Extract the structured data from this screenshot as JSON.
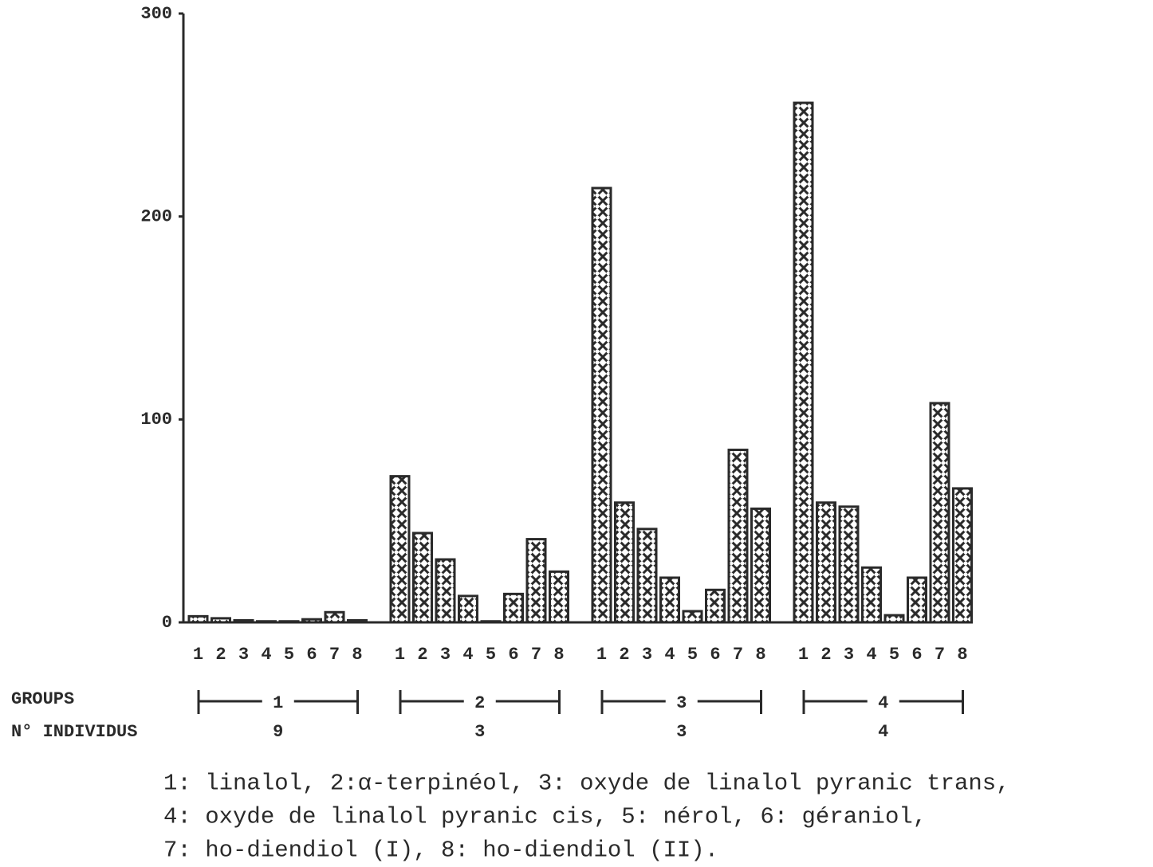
{
  "chart_data": {
    "type": "grouped_bar",
    "compounds": [
      "1",
      "2",
      "3",
      "4",
      "5",
      "6",
      "7",
      "8"
    ],
    "groups": [
      {
        "label": "1",
        "individuals": "9",
        "values": [
          3,
          2,
          1,
          0.5,
          0.5,
          1.5,
          5,
          1
        ]
      },
      {
        "label": "2",
        "individuals": "3",
        "values": [
          72,
          44,
          31,
          13,
          0.5,
          14,
          41,
          25
        ]
      },
      {
        "label": "3",
        "individuals": "3",
        "values": [
          214,
          59,
          46,
          22,
          5.5,
          16,
          85,
          56
        ]
      },
      {
        "label": "4",
        "individuals": "4",
        "values": [
          256,
          59,
          57,
          27,
          3.5,
          22,
          108,
          66
        ]
      }
    ],
    "row_labels": [
      "GROUPS",
      "N° INDIVIDUS"
    ],
    "legend_lines": [
      "1: linalol, 2:α-terpinéol, 3: oxyde de linalol pyranic trans,",
      "4: oxyde de linalol pyranic cis, 5: nérol, 6: géraniol,",
      "7: ho-diendiol (I), 8: ho-diendiol (II)."
    ],
    "color": "#2a2a2a",
    "ylim": [
      0,
      300
    ],
    "yticks": [
      0,
      100,
      200,
      300
    ]
  }
}
